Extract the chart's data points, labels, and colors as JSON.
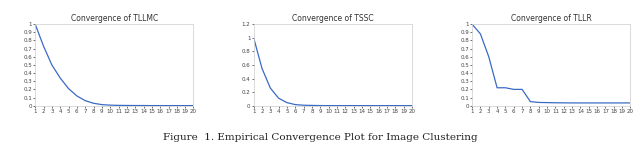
{
  "title1": "Convergence of TLLMC",
  "title2": "Convergence of TSSC",
  "title3": "Convergence of TLLR",
  "caption": "Figure  1. Empirical Convergence Plot for Image Clustering",
  "x": [
    1,
    2,
    3,
    4,
    5,
    6,
    7,
    8,
    9,
    10,
    11,
    12,
    13,
    14,
    15,
    16,
    17,
    18,
    19,
    20
  ],
  "y_tllmc": [
    1.0,
    0.73,
    0.5,
    0.34,
    0.21,
    0.12,
    0.062,
    0.03,
    0.013,
    0.007,
    0.004,
    0.003,
    0.002,
    0.002,
    0.001,
    0.001,
    0.001,
    0.001,
    0.001,
    0.001
  ],
  "y_tssc": [
    1.0,
    0.55,
    0.26,
    0.11,
    0.045,
    0.016,
    0.007,
    0.004,
    0.002,
    0.001,
    0.001,
    0.001,
    0.001,
    0.001,
    0.001,
    0.001,
    0.001,
    0.001,
    0.001,
    0.001
  ],
  "y_tllr": [
    1.0,
    0.88,
    0.6,
    0.22,
    0.22,
    0.2,
    0.2,
    0.05,
    0.04,
    0.038,
    0.036,
    0.035,
    0.034,
    0.034,
    0.034,
    0.034,
    0.034,
    0.034,
    0.034,
    0.034
  ],
  "line_color": "#3a6bc4",
  "line_width": 0.9,
  "title_fontsize": 5.5,
  "tick_fontsize": 4.0,
  "caption_fontsize": 7.5,
  "ylim_tllmc": [
    0,
    1.0
  ],
  "ylim_tssc": [
    0,
    1.2
  ],
  "ylim_tllr": [
    0,
    1.0
  ],
  "yticks_tllmc": [
    0,
    0.1,
    0.2,
    0.3,
    0.4,
    0.5,
    0.6,
    0.7,
    0.8,
    0.9,
    1.0
  ],
  "yticks_tssc": [
    0,
    0.2,
    0.4,
    0.6,
    0.8,
    1.0,
    1.2
  ],
  "yticks_tllr": [
    0,
    0.1,
    0.2,
    0.3,
    0.4,
    0.5,
    0.6,
    0.7,
    0.8,
    0.9,
    1.0
  ],
  "bg_color": "#ffffff",
  "spine_color": "#cccccc"
}
